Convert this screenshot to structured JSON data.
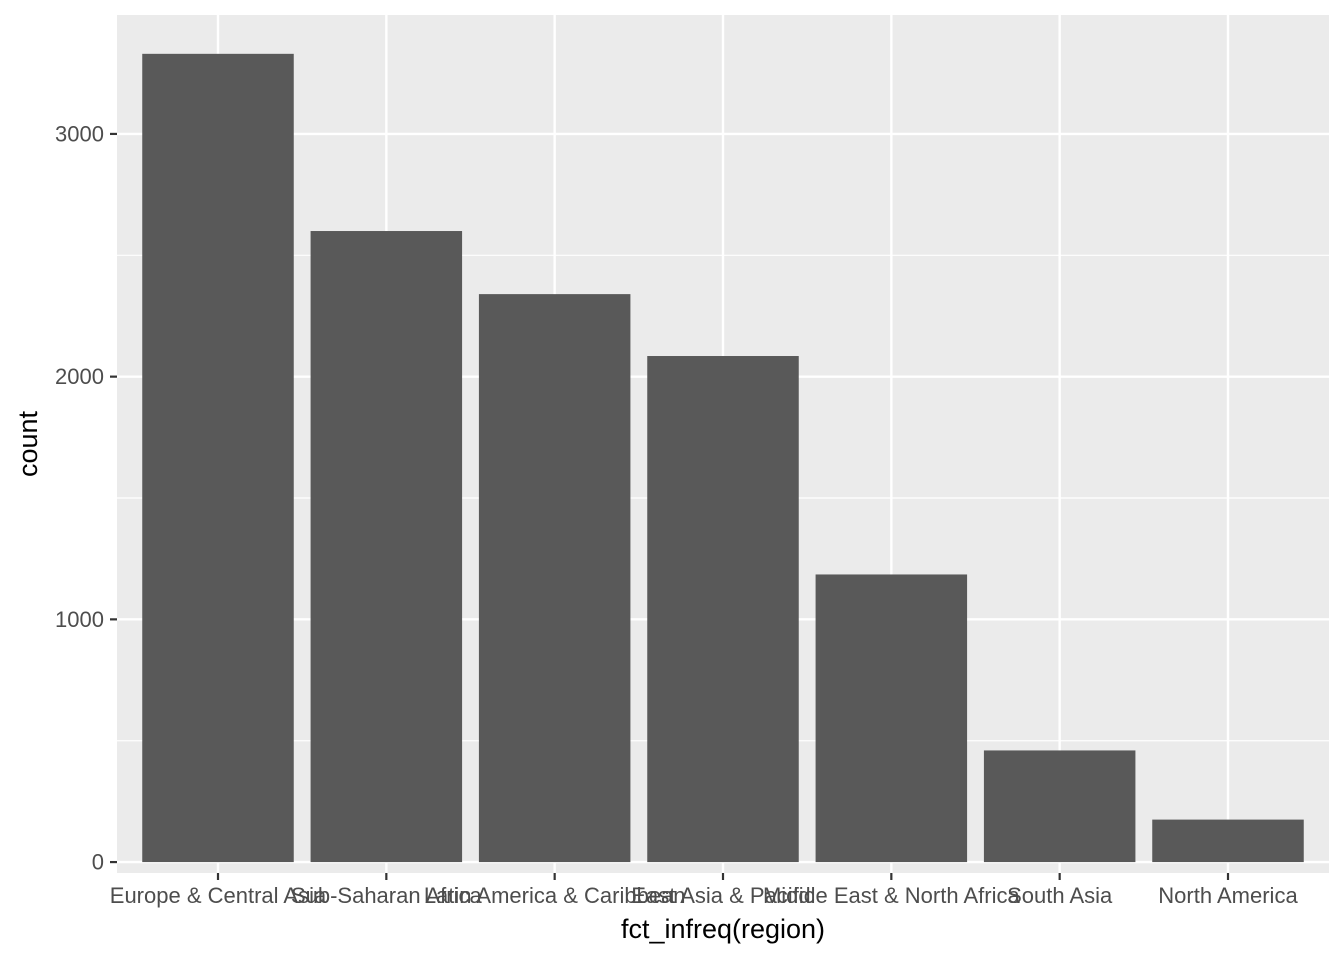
{
  "chart_data": {
    "type": "bar",
    "categories": [
      "Europe & Central Asia",
      "Sub-Saharan Africa",
      "Latin America & Caribbean",
      "East Asia & Pacific",
      "Middle East & North Africa",
      "South Asia",
      "North America"
    ],
    "values": [
      3330,
      2600,
      2340,
      2085,
      1185,
      460,
      175
    ],
    "xlabel": "fct_infreq(region)",
    "ylabel": "count",
    "ylim": [
      -45,
      3490
    ],
    "yticks": [
      0,
      1000,
      2000,
      3000
    ],
    "grid": true,
    "legend": "none",
    "colors": {
      "panel": "#ebebeb",
      "grid": "#ffffff",
      "bar": "#595959",
      "tick": "#333333",
      "tick_label": "#4d4d4d",
      "axis_title": "#000000"
    }
  }
}
